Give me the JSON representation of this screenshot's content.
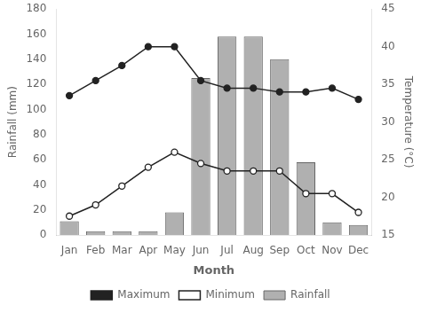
{
  "chart_data": {
    "type": "bar",
    "x_label": "Month",
    "y_label": "Rainfall (mm)",
    "y2_label": "Temperature (°C)",
    "categories": [
      "Jan",
      "Feb",
      "Mar",
      "Apr",
      "May",
      "Jun",
      "Jul",
      "Aug",
      "Sep",
      "Oct",
      "Nov",
      "Dec"
    ],
    "series": [
      {
        "name": "Rainfall",
        "type": "bar",
        "color": "#b0b0b0",
        "values": [
          11,
          3,
          3,
          3,
          18,
          125,
          158,
          158,
          140,
          58,
          10,
          8
        ]
      },
      {
        "name": "Maximum",
        "type": "line",
        "axis": "y2",
        "color": "#222222",
        "marker": "circle",
        "values": [
          33.5,
          35.5,
          37.5,
          40.0,
          40.0,
          35.5,
          34.5,
          34.5,
          34.0,
          34.0,
          34.5,
          33.0
        ]
      },
      {
        "name": "Minimum",
        "type": "line",
        "axis": "y2",
        "color": "#222222",
        "marker": "open-circle",
        "values": [
          17.5,
          19.0,
          21.5,
          24.0,
          26.0,
          24.5,
          23.5,
          23.5,
          23.5,
          20.5,
          20.5,
          18.0
        ]
      }
    ],
    "ylim": [
      0,
      180
    ],
    "yticks": [
      0,
      20,
      40,
      60,
      80,
      100,
      120,
      140,
      160,
      180
    ],
    "y2lim": [
      15,
      45
    ],
    "y2ticks": [
      15,
      20,
      25,
      30,
      35,
      40,
      45
    ],
    "grid": false,
    "legend": "bottom"
  }
}
